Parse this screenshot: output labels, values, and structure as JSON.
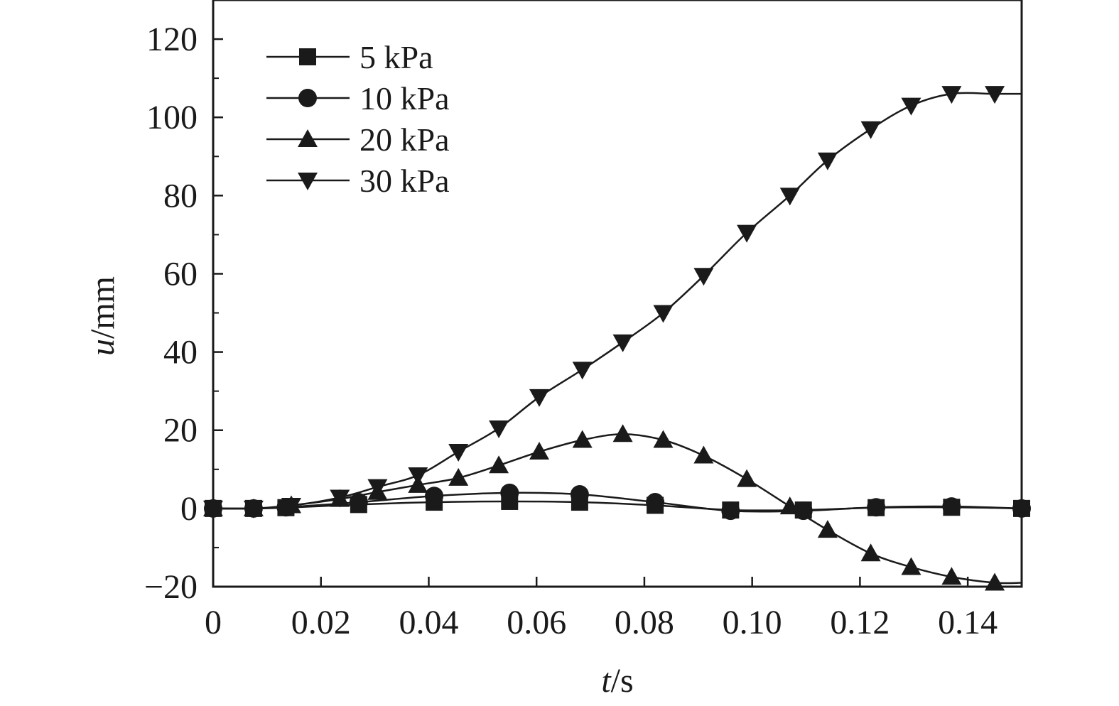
{
  "chart_data": {
    "type": "line",
    "title": "",
    "xlabel": {
      "var": "t",
      "unit": "/s"
    },
    "ylabel": {
      "var": "u",
      "unit": "/mm"
    },
    "xlim": [
      0,
      0.15
    ],
    "ylim": [
      -20,
      130
    ],
    "xticks": [
      {
        "value": 0,
        "label": "0"
      },
      {
        "value": 0.02,
        "label": "0.02"
      },
      {
        "value": 0.04,
        "label": "0.04"
      },
      {
        "value": 0.06,
        "label": "0.06"
      },
      {
        "value": 0.08,
        "label": "0.08"
      },
      {
        "value": 0.1,
        "label": "0.10"
      },
      {
        "value": 0.12,
        "label": "0.12"
      },
      {
        "value": 0.14,
        "label": "0.14"
      }
    ],
    "yticks": [
      {
        "value": -20,
        "label": "−20"
      },
      {
        "value": 0,
        "label": "0"
      },
      {
        "value": 20,
        "label": "20"
      },
      {
        "value": 40,
        "label": "40"
      },
      {
        "value": 60,
        "label": "60"
      },
      {
        "value": 80,
        "label": "80"
      },
      {
        "value": 100,
        "label": "100"
      },
      {
        "value": 120,
        "label": "120"
      }
    ],
    "grid": false,
    "legend_position": "top-left",
    "color": "#1a1a1a",
    "series": [
      {
        "name": "5 kPa",
        "marker": "square",
        "x": [
          0,
          0.0075,
          0.0135,
          0.027,
          0.041,
          0.055,
          0.068,
          0.082,
          0.096,
          0.1095,
          0.123,
          0.137,
          0.15
        ],
        "y": [
          0,
          0,
          0.2,
          1,
          1.6,
          1.8,
          1.6,
          0.8,
          -0.4,
          -0.4,
          0.2,
          0.3,
          0
        ]
      },
      {
        "name": "10 kPa",
        "marker": "circle",
        "x": [
          0,
          0.0075,
          0.0135,
          0.027,
          0.041,
          0.055,
          0.068,
          0.082,
          0.096,
          0.1095,
          0.123,
          0.137,
          0.15
        ],
        "y": [
          0,
          0,
          0.3,
          1.6,
          3.2,
          4,
          3.6,
          1.6,
          -0.6,
          -0.6,
          0.3,
          0.5,
          0
        ]
      },
      {
        "name": "20 kPa",
        "marker": "triangle-up",
        "x": [
          0,
          0.0075,
          0.0145,
          0.0235,
          0.0305,
          0.038,
          0.0455,
          0.053,
          0.0605,
          0.0685,
          0.076,
          0.0835,
          0.091,
          0.099,
          0.107,
          0.114,
          0.122,
          0.1295,
          0.137,
          0.145
        ],
        "y": [
          0,
          0,
          0.8,
          2.4,
          4.2,
          6,
          7.8,
          11,
          14.5,
          17.5,
          19,
          17.5,
          13.5,
          7.5,
          0.5,
          -5.5,
          -11.5,
          -15,
          -17.5,
          -19
        ]
      },
      {
        "name": "30 kPa",
        "marker": "triangle-down",
        "x": [
          0,
          0.0075,
          0.0145,
          0.0235,
          0.0305,
          0.038,
          0.0455,
          0.053,
          0.0605,
          0.0685,
          0.076,
          0.0835,
          0.091,
          0.099,
          0.107,
          0.114,
          0.122,
          0.1295,
          0.137,
          0.145
        ],
        "y": [
          0,
          0,
          0.7,
          2.8,
          5.5,
          8.5,
          14.5,
          20.5,
          28.5,
          35.5,
          42.5,
          50,
          59.5,
          70.5,
          80,
          89,
          97,
          103,
          106,
          106
        ]
      }
    ]
  }
}
